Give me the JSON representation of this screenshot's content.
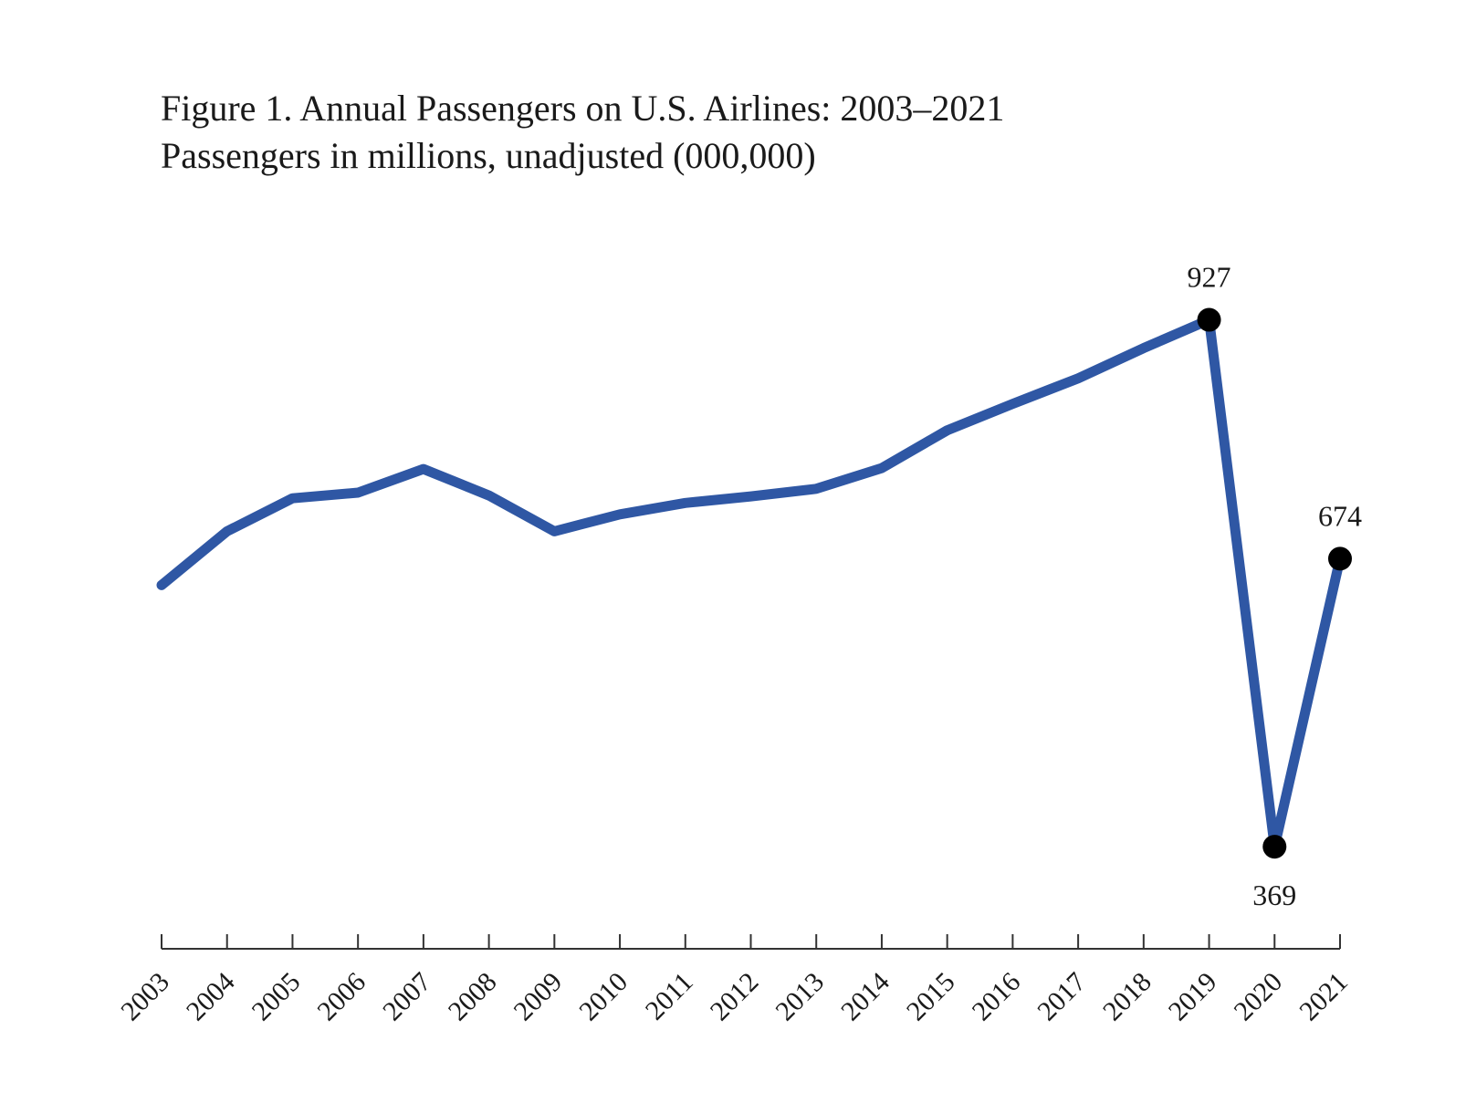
{
  "chart_data": {
    "type": "line",
    "title": "Figure 1. Annual Passengers on U.S. Airlines: 2003–2021",
    "subtitle": "Passengers in millions, unadjusted (000,000)",
    "xlabel": "",
    "ylabel": "",
    "x": [
      "2003",
      "2004",
      "2005",
      "2006",
      "2007",
      "2008",
      "2009",
      "2010",
      "2011",
      "2012",
      "2013",
      "2014",
      "2015",
      "2016",
      "2017",
      "2018",
      "2019",
      "2020",
      "2021"
    ],
    "series": [
      {
        "values": [
          646,
          703,
          738,
          744,
          769,
          741,
          703,
          721,
          733,
          740,
          748,
          770,
          810,
          838,
          865,
          897,
          927,
          369,
          674
        ]
      }
    ],
    "ylim": [
      0,
      1000
    ],
    "grid": false,
    "legend": "none",
    "point_labels": [
      {
        "x": "2019",
        "label": "927"
      },
      {
        "x": "2020",
        "label": "369"
      },
      {
        "x": "2021",
        "label": "674"
      }
    ],
    "colors": {
      "line": "#2f57a4",
      "marker": "#000000",
      "axis": "#333333",
      "text": "#1a1a1a"
    }
  }
}
